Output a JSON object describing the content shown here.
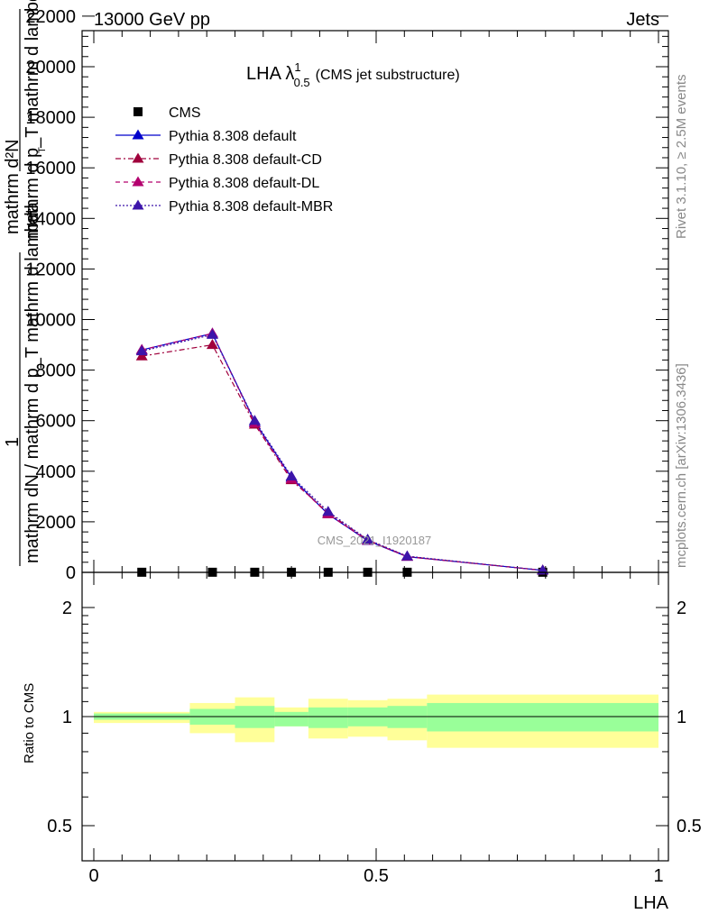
{
  "header": {
    "left": "13000 GeV pp",
    "right": "Jets"
  },
  "side_text": {
    "rivet": "Rivet 3.1.10, ≥ 2.5M events",
    "mcplots": "mcplots.cern.ch [arXiv:1306.3436]"
  },
  "watermark": "CMS_2021_I1920187",
  "chart_data": [
    {
      "type": "line",
      "title_main": "LHA λ",
      "title_sup": "1",
      "title_sub": "0.5",
      "title_tail": "(CMS jet substructure)",
      "ylabel_top": "1",
      "ylabel_lines": [
        "mathrm d²N",
        "mathrm d p_T mathrm d lambda",
        "mathrm dN / mathrm d p_T mathrm d lambda"
      ],
      "ylabel_sub": "T",
      "ylim": [
        0,
        22000
      ],
      "yticks": [
        0,
        2000,
        4000,
        6000,
        8000,
        10000,
        12000,
        14000,
        16000,
        18000,
        20000,
        22000
      ],
      "ytick_labels": [
        "0",
        "2000",
        "4000",
        "6000",
        "8000",
        "10000",
        "12000",
        "14000",
        "16000",
        "18000",
        "20000",
        "22000"
      ],
      "xlim": [
        0,
        1
      ],
      "legend_position": "top-left",
      "series": [
        {
          "name": "CMS",
          "color": "#000000",
          "marker": "square",
          "line": "none",
          "x": [
            0.085,
            0.21,
            0.285,
            0.35,
            0.415,
            0.485,
            0.555,
            0.795
          ],
          "y": [
            5,
            5,
            5,
            5,
            5,
            5,
            5,
            5
          ]
        },
        {
          "name": "Pythia 8.308 default",
          "color": "#0000cc",
          "marker": "triangle",
          "line": "solid",
          "x": [
            0.085,
            0.21,
            0.285,
            0.35,
            0.415,
            0.485,
            0.555,
            0.795
          ],
          "y": [
            8800,
            9450,
            5950,
            3750,
            2300,
            1250,
            620,
            80
          ]
        },
        {
          "name": "Pythia 8.308 default-CD",
          "color": "#a0003c",
          "marker": "triangle",
          "line": "dashdot",
          "x": [
            0.085,
            0.21,
            0.285,
            0.35,
            0.415,
            0.485,
            0.555,
            0.795
          ],
          "y": [
            8550,
            9000,
            5850,
            3650,
            2350,
            1280,
            630,
            80
          ]
        },
        {
          "name": "Pythia 8.308 default-DL",
          "color": "#b4006e",
          "marker": "triangle",
          "line": "dashed",
          "x": [
            0.085,
            0.21,
            0.285,
            0.35,
            0.415,
            0.485,
            0.555,
            0.795
          ],
          "y": [
            8800,
            9450,
            5900,
            3700,
            2300,
            1260,
            620,
            80
          ]
        },
        {
          "name": "Pythia 8.308 default-MBR",
          "color": "#3c14aa",
          "marker": "triangle",
          "line": "dotted",
          "x": [
            0.085,
            0.21,
            0.285,
            0.35,
            0.415,
            0.485,
            0.555,
            0.795
          ],
          "y": [
            8750,
            9400,
            6000,
            3800,
            2400,
            1300,
            640,
            80
          ]
        }
      ]
    },
    {
      "type": "area",
      "ylabel": "Ratio to CMS",
      "xlabel": "LHA",
      "log_y": true,
      "ylim": [
        0.4,
        2.3
      ],
      "yticks": [
        0.5,
        1,
        2
      ],
      "ytick_labels": [
        "0.5",
        "1",
        "2"
      ],
      "xlim": [
        0,
        1
      ],
      "xticks": [
        0,
        0.5,
        1
      ],
      "xtick_labels": [
        "0",
        "0.5",
        "1"
      ],
      "reference_line": 1,
      "bins": [
        0,
        0.17,
        0.25,
        0.32,
        0.38,
        0.45,
        0.52,
        0.59,
        1.0
      ],
      "band_stat": {
        "color": "#99ff99",
        "low": [
          0.98,
          0.95,
          0.93,
          0.94,
          0.93,
          0.94,
          0.93,
          0.91
        ],
        "high": [
          1.02,
          1.05,
          1.07,
          1.03,
          1.06,
          1.06,
          1.07,
          1.09
        ]
      },
      "band_total": {
        "color": "#ffff99",
        "low": [
          0.96,
          0.9,
          0.85,
          0.94,
          0.87,
          0.88,
          0.86,
          0.82
        ],
        "high": [
          1.03,
          1.09,
          1.13,
          1.06,
          1.12,
          1.11,
          1.12,
          1.15
        ]
      }
    }
  ]
}
